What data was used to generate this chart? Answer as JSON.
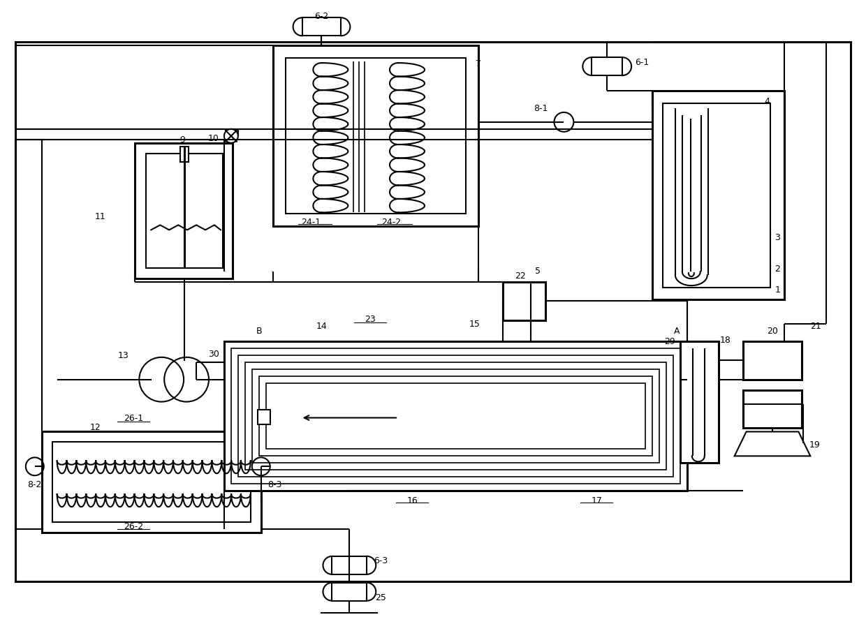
{
  "bg_color": "#ffffff",
  "lc": "#000000",
  "lw": 1.5,
  "lw2": 2.2,
  "fig_w": 12.4,
  "fig_h": 8.95
}
